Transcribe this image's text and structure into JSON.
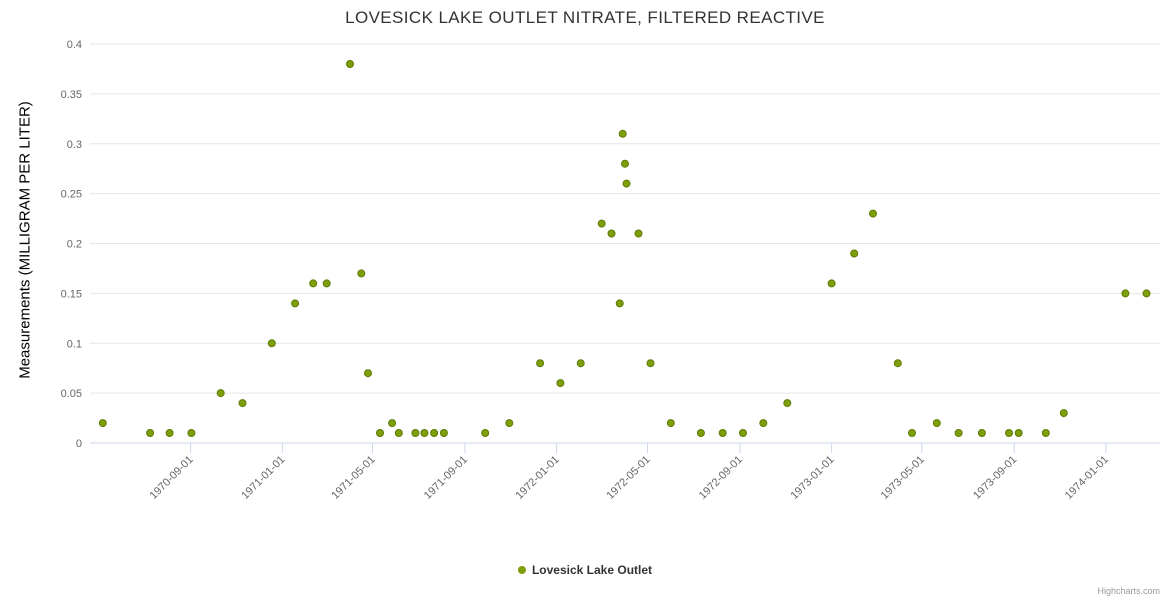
{
  "credits": "Highcharts.com",
  "chart_data": {
    "type": "scatter",
    "title": "LOVESICK LAKE OUTLET NITRATE, FILTERED REACTIVE",
    "xlabel": "",
    "ylabel": "Measurements (MILLIGRAM PER LITER)",
    "ylim": [
      0,
      0.4
    ],
    "y_ticks": [
      0,
      0.05,
      0.1,
      0.15,
      0.2,
      0.25,
      0.3,
      0.35,
      0.4
    ],
    "x_range": [
      "1970-04-20",
      "1974-03-14"
    ],
    "x_ticks": [
      "1970-09-01",
      "1971-01-01",
      "1971-05-01",
      "1971-09-01",
      "1972-01-01",
      "1972-05-01",
      "1972-09-01",
      "1973-01-01",
      "1973-05-01",
      "1973-09-01",
      "1974-01-01"
    ],
    "grid": true,
    "legend_position": "bottom-center",
    "style": {
      "grid_color": "#e6e6e6",
      "axis_color": "#ccd6eb",
      "label_color": "#666666",
      "title_color": "#333333"
    },
    "series": [
      {
        "name": "Lovesick Lake Outlet",
        "color": "#7d9f0a",
        "border_color": "#5f7a08",
        "points": [
          {
            "x": "1970-05-07",
            "y": 0.02
          },
          {
            "x": "1970-07-09",
            "y": 0.01
          },
          {
            "x": "1970-08-04",
            "y": 0.01
          },
          {
            "x": "1970-09-02",
            "y": 0.01
          },
          {
            "x": "1970-10-11",
            "y": 0.05
          },
          {
            "x": "1970-11-09",
            "y": 0.04
          },
          {
            "x": "1970-12-18",
            "y": 0.1
          },
          {
            "x": "1971-01-18",
            "y": 0.14
          },
          {
            "x": "1971-02-11",
            "y": 0.16
          },
          {
            "x": "1971-03-01",
            "y": 0.16
          },
          {
            "x": "1971-04-01",
            "y": 0.38
          },
          {
            "x": "1971-04-16",
            "y": 0.17
          },
          {
            "x": "1971-04-25",
            "y": 0.07
          },
          {
            "x": "1971-05-11",
            "y": 0.01
          },
          {
            "x": "1971-05-27",
            "y": 0.02
          },
          {
            "x": "1971-06-05",
            "y": 0.01
          },
          {
            "x": "1971-06-27",
            "y": 0.01
          },
          {
            "x": "1971-07-09",
            "y": 0.01
          },
          {
            "x": "1971-07-22",
            "y": 0.01
          },
          {
            "x": "1971-08-04",
            "y": 0.01
          },
          {
            "x": "1971-09-28",
            "y": 0.01
          },
          {
            "x": "1971-10-30",
            "y": 0.02
          },
          {
            "x": "1971-12-10",
            "y": 0.08
          },
          {
            "x": "1972-01-06",
            "y": 0.06
          },
          {
            "x": "1972-02-02",
            "y": 0.08
          },
          {
            "x": "1972-03-01",
            "y": 0.22
          },
          {
            "x": "1972-03-14",
            "y": 0.21
          },
          {
            "x": "1972-03-25",
            "y": 0.14
          },
          {
            "x": "1972-03-29",
            "y": 0.31
          },
          {
            "x": "1972-04-01",
            "y": 0.28
          },
          {
            "x": "1972-04-03",
            "y": 0.26
          },
          {
            "x": "1972-04-19",
            "y": 0.21
          },
          {
            "x": "1972-05-05",
            "y": 0.08
          },
          {
            "x": "1972-06-01",
            "y": 0.02
          },
          {
            "x": "1972-07-11",
            "y": 0.01
          },
          {
            "x": "1972-08-09",
            "y": 0.01
          },
          {
            "x": "1972-09-05",
            "y": 0.01
          },
          {
            "x": "1972-10-02",
            "y": 0.02
          },
          {
            "x": "1972-11-03",
            "y": 0.04
          },
          {
            "x": "1973-01-01",
            "y": 0.16
          },
          {
            "x": "1973-01-31",
            "y": 0.19
          },
          {
            "x": "1973-02-25",
            "y": 0.23
          },
          {
            "x": "1973-03-30",
            "y": 0.08
          },
          {
            "x": "1973-04-18",
            "y": 0.01
          },
          {
            "x": "1973-05-21",
            "y": 0.02
          },
          {
            "x": "1973-06-19",
            "y": 0.01
          },
          {
            "x": "1973-07-20",
            "y": 0.01
          },
          {
            "x": "1973-08-25",
            "y": 0.01
          },
          {
            "x": "1973-09-07",
            "y": 0.01
          },
          {
            "x": "1973-10-13",
            "y": 0.01
          },
          {
            "x": "1973-11-06",
            "y": 0.03
          },
          {
            "x": "1974-01-27",
            "y": 0.15
          },
          {
            "x": "1974-02-24",
            "y": 0.15
          }
        ]
      }
    ]
  }
}
